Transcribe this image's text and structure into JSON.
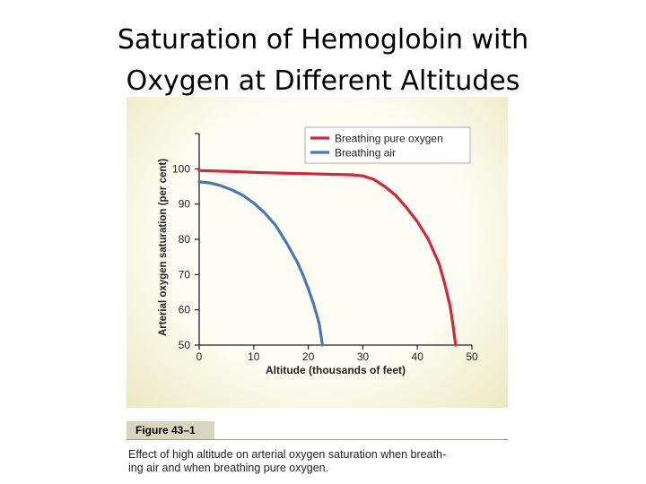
{
  "slide": {
    "title_line1": "Saturation of Hemoglobin with",
    "title_line2": "Oxygen at Different Altitudes"
  },
  "figure": {
    "label": "Figure 43–1",
    "caption_line1": "Effect of high altitude on arterial oxygen saturation when breath-",
    "caption_line2": "ing air and when breathing pure oxygen."
  },
  "chart_data": {
    "type": "line",
    "xlabel": "Altitude (thousands of feet)",
    "ylabel": "Arterial oxygen saturation (per cent)",
    "xlim": [
      0,
      50
    ],
    "ylim": [
      50,
      110
    ],
    "xticks": [
      0,
      10,
      20,
      30,
      40,
      50
    ],
    "yticks": [
      50,
      60,
      70,
      80,
      90,
      100
    ],
    "grid": false,
    "legend_position": "top-right",
    "series": [
      {
        "name": "Breathing pure oxygen",
        "color": "#d3273e",
        "x": [
          0,
          5,
          10,
          15,
          20,
          25,
          28,
          30,
          32,
          34,
          36,
          38,
          40,
          42,
          44,
          45,
          46,
          46.5,
          47
        ],
        "y": [
          99.5,
          99.3,
          99.0,
          98.8,
          98.6,
          98.4,
          98.3,
          98.0,
          97.0,
          95.0,
          92.5,
          89.0,
          85.0,
          80.0,
          73.0,
          67.5,
          61.0,
          56.0,
          50.0
        ]
      },
      {
        "name": "Breathing air",
        "color": "#4a78b6",
        "x": [
          0,
          2,
          4,
          6,
          8,
          10,
          12,
          14,
          16,
          18,
          19,
          20,
          21,
          22,
          22.6
        ],
        "y": [
          96.3,
          96.0,
          95.2,
          94.0,
          92.5,
          90.3,
          87.5,
          84.0,
          79.0,
          73.5,
          70.0,
          66.0,
          61.5,
          56.0,
          50.0
        ]
      }
    ]
  }
}
